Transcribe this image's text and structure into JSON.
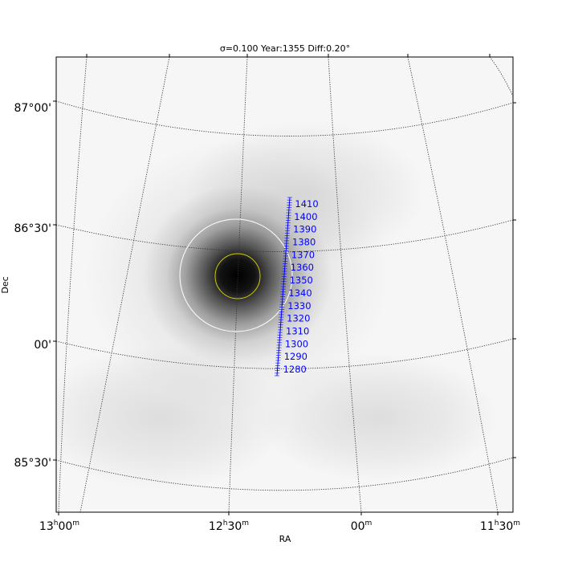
{
  "chart_data": {
    "type": "heatmap",
    "title": "σ=0.100  Year:1355 Diff:0.20°",
    "xlabel": "RA",
    "ylabel": "Dec",
    "ra_ticks": [
      {
        "h": "13",
        "h_sup": "h",
        "m": "00",
        "m_sup": "m"
      },
      {
        "h": "12",
        "h_sup": "h",
        "m": "30",
        "m_sup": "m"
      },
      {
        "h": "",
        "h_sup": "",
        "m": "00",
        "m_sup": "m"
      },
      {
        "h": "11",
        "h_sup": "h",
        "m": "30",
        "m_sup": "m"
      }
    ],
    "dec_ticks": [
      "87°00'",
      "86°30'",
      "00'",
      "85°30'"
    ],
    "track": {
      "color": "#0000ff",
      "years": [
        1280,
        1290,
        1300,
        1310,
        1320,
        1330,
        1340,
        1350,
        1360,
        1370,
        1380,
        1390,
        1400,
        1410
      ],
      "year_range": [
        1275,
        1415
      ]
    },
    "circles": [
      {
        "name": "inner",
        "color": "#cccc00"
      },
      {
        "name": "outer",
        "color": "#ffffff"
      }
    ],
    "grid": true
  }
}
